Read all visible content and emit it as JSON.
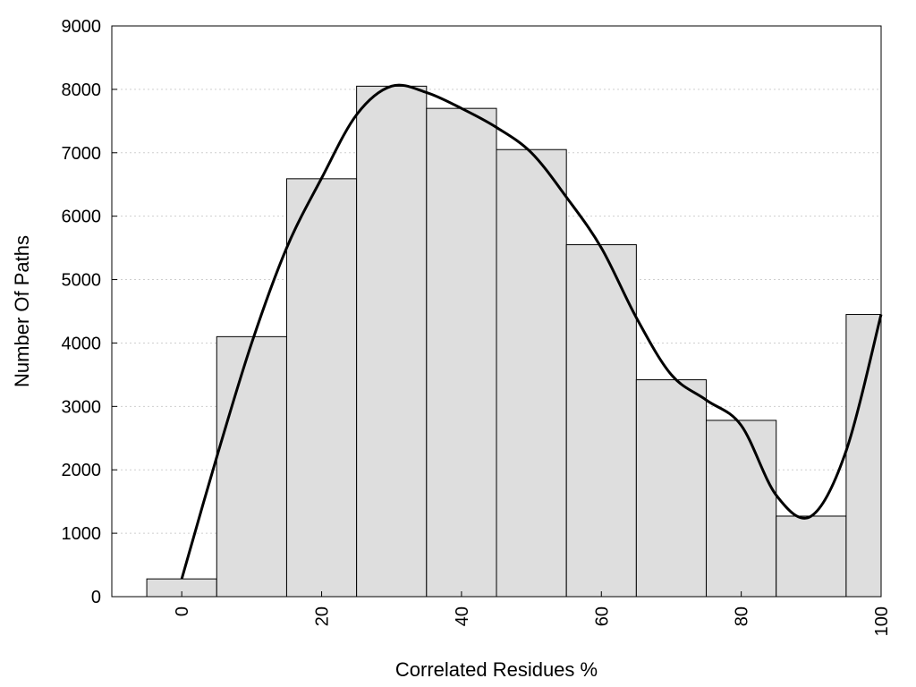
{
  "chart_data": {
    "type": "bar",
    "xlabel": "Correlated Residues %",
    "ylabel": "Number Of Paths",
    "x": [
      0,
      10,
      20,
      30,
      40,
      50,
      60,
      70,
      80,
      90,
      100
    ],
    "values": [
      280,
      4100,
      6590,
      8050,
      7700,
      7050,
      5550,
      3420,
      2780,
      1270,
      4450
    ],
    "bar_width": 10,
    "xlim": [
      -10,
      100
    ],
    "ylim": [
      0,
      9000
    ],
    "x_ticks": [
      0,
      20,
      40,
      60,
      80,
      100
    ],
    "y_ticks": [
      0,
      1000,
      2000,
      3000,
      4000,
      5000,
      6000,
      7000,
      8000,
      9000
    ],
    "grid": "horizontal dotted",
    "bar_color": "#dedede",
    "curve_color": "#000000",
    "smooth_curve": {
      "x": [
        0,
        5,
        10,
        15,
        20,
        25,
        30,
        35,
        40,
        45,
        50,
        55,
        60,
        65,
        70,
        75,
        80,
        85,
        90,
        95,
        100
      ],
      "y": [
        280,
        2200,
        4000,
        5500,
        6600,
        7600,
        8050,
        7950,
        7700,
        7400,
        7000,
        6300,
        5500,
        4400,
        3500,
        3100,
        2700,
        1600,
        1270,
        2300,
        4450
      ]
    }
  }
}
